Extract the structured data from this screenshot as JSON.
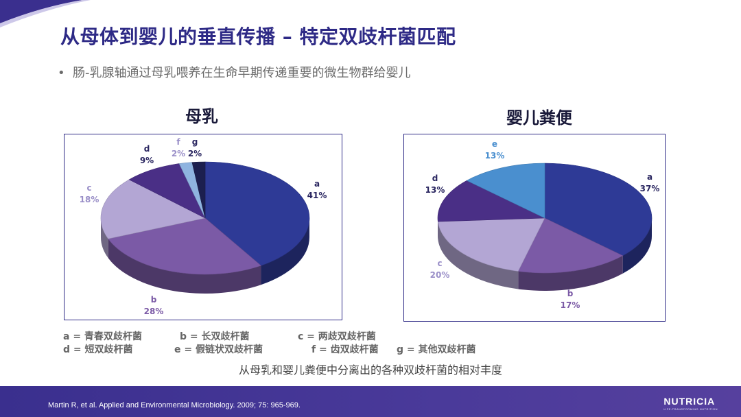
{
  "slide": {
    "title": "从母体到婴儿的垂直传播 – 特定双歧杆菌匹配",
    "bullet": "肠-乳腺轴通过母乳喂养在生命早期传递重要的微生物群给婴儿",
    "caption": "从母乳和婴儿粪便中分离出的各种双歧杆菌的相对丰度",
    "citation": "Martin R, et al. Applied and Environmental Microbiology. 2009; 75: 965-969.",
    "logo": {
      "brand": "NUTRICIA",
      "tagline": "LIFE-TRANSFORMING NUTRITION"
    }
  },
  "legend": [
    "a = 青春双歧杆菌",
    "b = 长双歧杆菌",
    "c = 两歧双歧杆菌",
    "d = 短双歧杆菌",
    "e = 假链状双歧杆菌",
    "f = 齿双歧杆菌",
    "g = 其他双歧杆菌"
  ],
  "colors": {
    "title": "#2e2a86",
    "a": "#2e3a96",
    "b": "#7b5aa6",
    "c": "#b3a6d4",
    "d": "#4a2f86",
    "e": "#4a8fcf",
    "f": "#8fb4e0",
    "g": "#1c1f4f",
    "footer": "#3a2f8e"
  },
  "chart_data": [
    {
      "type": "pie",
      "title": "母乳",
      "slices": [
        {
          "label": "a",
          "value": 41,
          "pct": "41%"
        },
        {
          "label": "b",
          "value": 28,
          "pct": "28%"
        },
        {
          "label": "c",
          "value": 18,
          "pct": "18%"
        },
        {
          "label": "d",
          "value": 9,
          "pct": "9%"
        },
        {
          "label": "f",
          "value": 2,
          "pct": "2%"
        },
        {
          "label": "g",
          "value": 2,
          "pct": "2%"
        }
      ]
    },
    {
      "type": "pie",
      "title": "婴儿粪便",
      "slices": [
        {
          "label": "a",
          "value": 37,
          "pct": "37%"
        },
        {
          "label": "b",
          "value": 17,
          "pct": "17%"
        },
        {
          "label": "c",
          "value": 20,
          "pct": "20%"
        },
        {
          "label": "d",
          "value": 13,
          "pct": "13%"
        },
        {
          "label": "e",
          "value": 13,
          "pct": "13%"
        }
      ]
    }
  ]
}
